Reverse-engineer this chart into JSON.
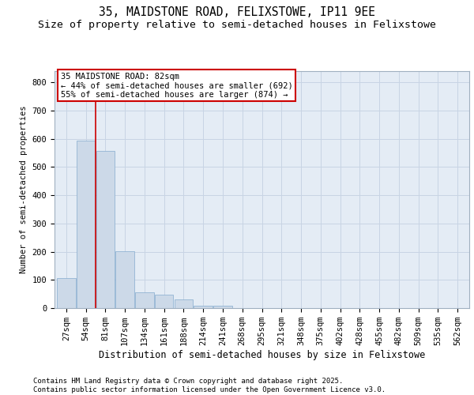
{
  "title1": "35, MAIDSTONE ROAD, FELIXSTOWE, IP11 9EE",
  "title2": "Size of property relative to semi-detached houses in Felixstowe",
  "xlabel": "Distribution of semi-detached houses by size in Felixstowe",
  "ylabel": "Number of semi-detached properties",
  "categories": [
    "27sqm",
    "54sqm",
    "81sqm",
    "107sqm",
    "134sqm",
    "161sqm",
    "188sqm",
    "214sqm",
    "241sqm",
    "268sqm",
    "295sqm",
    "321sqm",
    "348sqm",
    "375sqm",
    "402sqm",
    "428sqm",
    "455sqm",
    "482sqm",
    "509sqm",
    "535sqm",
    "562sqm"
  ],
  "values": [
    107,
    595,
    557,
    203,
    57,
    47,
    30,
    8,
    8,
    0,
    0,
    0,
    0,
    0,
    0,
    0,
    0,
    0,
    0,
    0,
    0
  ],
  "bar_color": "#ccd9e8",
  "bar_edge_color": "#85aace",
  "grid_color": "#c8d4e4",
  "background_color": "#e4ecf5",
  "annotation_box_text": "35 MAIDSTONE ROAD: 82sqm\n← 44% of semi-detached houses are smaller (692)\n55% of semi-detached houses are larger (874) →",
  "annotation_box_color": "#ffffff",
  "annotation_box_edge_color": "#cc0000",
  "red_line_x": 1.5,
  "ylim": [
    0,
    840
  ],
  "yticks": [
    0,
    100,
    200,
    300,
    400,
    500,
    600,
    700,
    800
  ],
  "footer_line1": "Contains HM Land Registry data © Crown copyright and database right 2025.",
  "footer_line2": "Contains public sector information licensed under the Open Government Licence v3.0.",
  "title_fontsize": 10.5,
  "subtitle_fontsize": 9.5,
  "tick_fontsize": 7.5,
  "label_fontsize": 8.5,
  "footer_fontsize": 6.5
}
